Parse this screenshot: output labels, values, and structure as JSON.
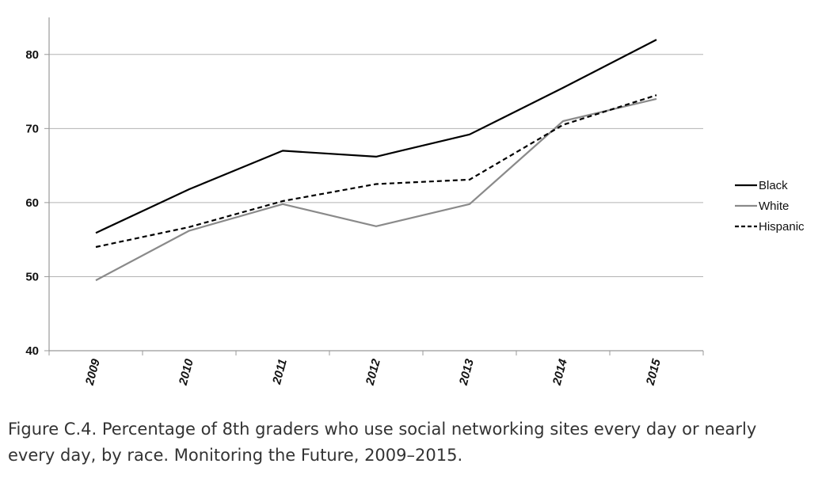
{
  "chart_data": {
    "type": "line",
    "x": [
      "2009",
      "2010",
      "2011",
      "2012",
      "2013",
      "2014",
      "2015"
    ],
    "ylim": [
      40,
      85
    ],
    "yticks": [
      40,
      50,
      60,
      70,
      80
    ],
    "grid": true,
    "legend_position": "right",
    "series": [
      {
        "name": "Black",
        "values": [
          55.9,
          61.8,
          67.0,
          66.2,
          69.2,
          75.5,
          82.0
        ],
        "color": "#000000",
        "dash": "solid"
      },
      {
        "name": "White",
        "values": [
          49.5,
          56.2,
          59.8,
          56.8,
          59.8,
          71.0,
          74.0
        ],
        "color": "#8a8a8a",
        "dash": "solid"
      },
      {
        "name": "Hispanic",
        "values": [
          54.0,
          56.7,
          60.2,
          62.5,
          63.1,
          70.5,
          74.5
        ],
        "color": "#000000",
        "dash": "dashed"
      }
    ]
  },
  "caption": "Figure C.4. Percentage of 8th graders who use social networking sites every day or nearly every day, by race. Monitoring the Future, 2009–2015."
}
